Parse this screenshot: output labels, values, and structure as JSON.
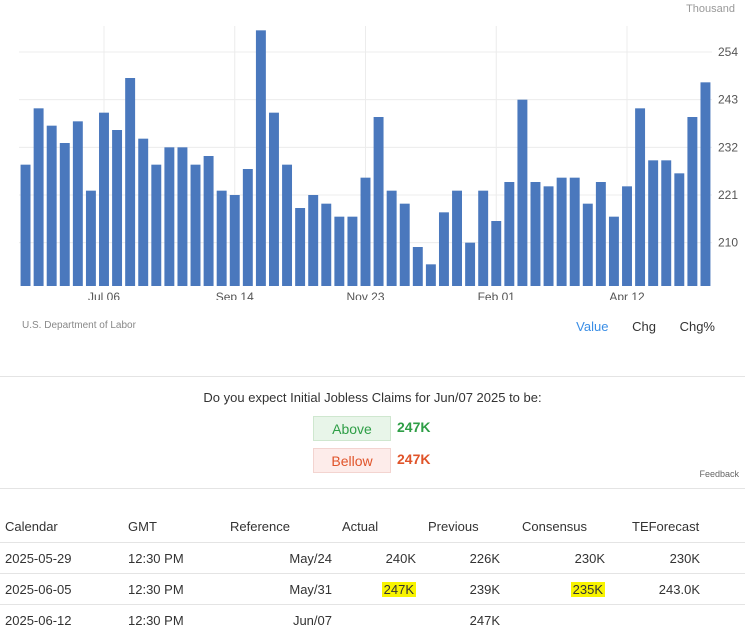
{
  "chart_data": {
    "type": "bar",
    "unit_label": "Thousand",
    "source": "U.S. Department of Labor",
    "bar_color": "#4a78bd",
    "ylim": [
      200,
      260
    ],
    "yticks": [
      210,
      221,
      232,
      243,
      254
    ],
    "xtick_labels": [
      "Jul 06",
      "Sep 14",
      "Nov 23",
      "Feb 01",
      "Apr 12"
    ],
    "xtick_positions": [
      6,
      16,
      26,
      36,
      46
    ],
    "values": [
      228,
      241,
      237,
      233,
      238,
      222,
      240,
      236,
      248,
      234,
      228,
      232,
      232,
      228,
      230,
      222,
      221,
      227,
      259,
      240,
      228,
      218,
      221,
      219,
      216,
      216,
      225,
      239,
      222,
      219,
      209,
      205,
      217,
      222,
      210,
      222,
      215,
      224,
      243,
      224,
      223,
      225,
      225,
      219,
      224,
      216,
      223,
      241,
      229,
      229,
      226,
      239,
      247
    ]
  },
  "tabs": {
    "value": "Value",
    "chg": "Chg",
    "chgpct": "Chg%"
  },
  "poll": {
    "question": "Do you expect Initial Jobless Claims for Jun/07 2025 to be:",
    "above_label": "Above",
    "above_value": "247K",
    "below_label": "Bellow",
    "below_value": "247K",
    "feedback": "Feedback"
  },
  "calendar": {
    "headers": [
      "Calendar",
      "GMT",
      "Reference",
      "Actual",
      "Previous",
      "Consensus",
      "TEForecast"
    ],
    "rows": [
      [
        "2025-05-29",
        "12:30 PM",
        "May/24",
        "240K",
        "226K",
        "230K",
        "230K"
      ],
      [
        "2025-06-05",
        "12:30 PM",
        "May/31",
        "247K",
        "239K",
        "235K",
        "243.0K"
      ],
      [
        "2025-06-12",
        "12:30 PM",
        "Jun/07",
        "",
        "247K",
        "",
        ""
      ]
    ],
    "highlight_color": "#f8f400"
  }
}
